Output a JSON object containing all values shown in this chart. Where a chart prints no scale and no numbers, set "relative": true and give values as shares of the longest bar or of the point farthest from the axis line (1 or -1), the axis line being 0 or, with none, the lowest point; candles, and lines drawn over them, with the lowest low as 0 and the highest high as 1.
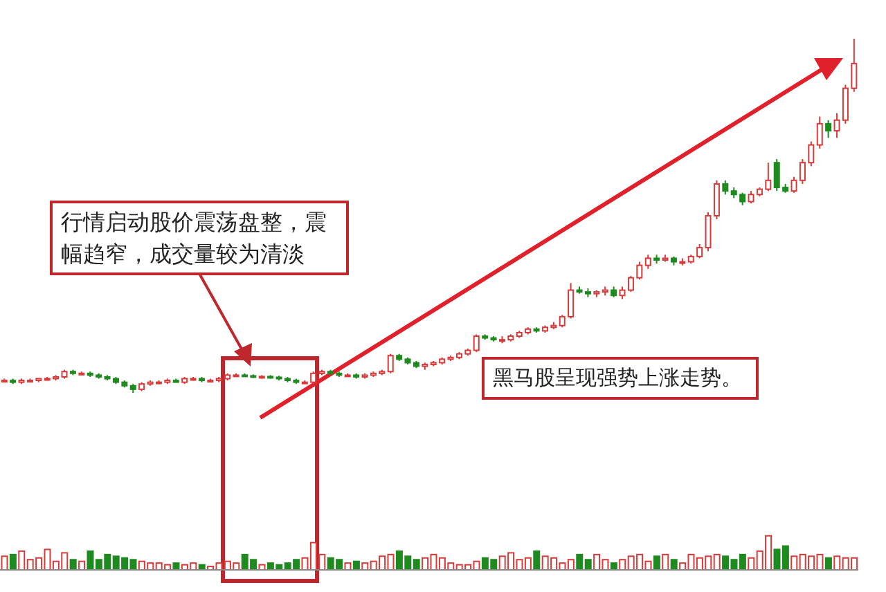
{
  "chart_data": [
    {
      "type": "candlestick",
      "relative": true,
      "tick_labels": false,
      "legend": false,
      "categories": [
        null,
        null,
        null,
        null,
        null,
        null,
        null,
        null,
        null,
        null,
        null,
        null,
        null,
        null,
        null,
        null,
        null,
        null,
        null,
        null,
        null,
        null,
        null,
        null,
        null,
        null,
        null,
        null,
        null,
        null,
        null,
        null,
        null,
        null,
        null,
        null,
        null,
        null,
        null,
        null,
        null,
        null,
        null,
        null,
        null,
        null,
        null,
        null,
        null,
        null,
        null,
        null,
        null,
        null,
        null,
        null,
        null,
        null,
        null,
        null,
        null,
        null,
        null,
        null,
        null,
        null,
        null,
        null,
        null,
        null,
        null,
        null,
        null,
        null,
        null,
        null,
        null,
        null,
        null,
        null,
        null,
        null,
        null,
        null,
        null,
        null,
        null,
        null,
        null,
        null,
        null,
        null,
        null,
        null,
        null,
        null,
        null,
        null,
        null,
        null
      ],
      "ohlc": [
        [
          0.035,
          0.04,
          0.03,
          0.035
        ],
        [
          0.035,
          0.04,
          0.025,
          0.03
        ],
        [
          0.03,
          0.04,
          0.025,
          0.035
        ],
        [
          0.035,
          0.04,
          0.03,
          0.035
        ],
        [
          0.035,
          0.04,
          0.03,
          0.04
        ],
        [
          0.04,
          0.045,
          0.035,
          0.04
        ],
        [
          0.04,
          0.05,
          0.035,
          0.045
        ],
        [
          0.045,
          0.065,
          0.04,
          0.06
        ],
        [
          0.06,
          0.065,
          0.05,
          0.055
        ],
        [
          0.055,
          0.06,
          0.05,
          0.055
        ],
        [
          0.055,
          0.06,
          0.045,
          0.05
        ],
        [
          0.05,
          0.055,
          0.04,
          0.045
        ],
        [
          0.045,
          0.05,
          0.035,
          0.04
        ],
        [
          0.04,
          0.045,
          0.025,
          0.03
        ],
        [
          0.03,
          0.035,
          0.015,
          0.02
        ],
        [
          0.02,
          0.025,
          0,
          0.01
        ],
        [
          0.01,
          0.03,
          0.005,
          0.025
        ],
        [
          0.025,
          0.035,
          0.02,
          0.03
        ],
        [
          0.03,
          0.035,
          0.025,
          0.03
        ],
        [
          0.03,
          0.04,
          0.025,
          0.035
        ],
        [
          0.035,
          0.04,
          0.03,
          0.03
        ],
        [
          0.03,
          0.045,
          0.025,
          0.04
        ],
        [
          0.04,
          0.045,
          0.035,
          0.04
        ],
        [
          0.04,
          0.045,
          0.03,
          0.035
        ],
        [
          0.035,
          0.04,
          0.03,
          0.035
        ],
        [
          0.035,
          0.045,
          0.03,
          0.04
        ],
        [
          0.04,
          0.055,
          0.035,
          0.05
        ],
        [
          0.05,
          0.055,
          0.045,
          0.05
        ],
        [
          0.05,
          0.055,
          0.045,
          0.048
        ],
        [
          0.048,
          0.052,
          0.042,
          0.046
        ],
        [
          0.046,
          0.05,
          0.04,
          0.046
        ],
        [
          0.046,
          0.05,
          0.04,
          0.044
        ],
        [
          0.044,
          0.048,
          0.035,
          0.04
        ],
        [
          0.04,
          0.045,
          0.03,
          0.035
        ],
        [
          0.035,
          0.04,
          0.025,
          0.03
        ],
        [
          0.03,
          0.035,
          0.025,
          0.03
        ],
        [
          0.03,
          0.06,
          0.025,
          0.055
        ],
        [
          0.055,
          0.065,
          0.05,
          0.06
        ],
        [
          0.06,
          0.065,
          0.05,
          0.055
        ],
        [
          0.055,
          0.06,
          0.045,
          0.05
        ],
        [
          0.05,
          0.055,
          0.045,
          0.05
        ],
        [
          0.05,
          0.055,
          0.04,
          0.045
        ],
        [
          0.045,
          0.055,
          0.04,
          0.05
        ],
        [
          0.05,
          0.06,
          0.045,
          0.055
        ],
        [
          0.055,
          0.065,
          0.05,
          0.06
        ],
        [
          0.06,
          0.11,
          0.055,
          0.105
        ],
        [
          0.105,
          0.11,
          0.09,
          0.095
        ],
        [
          0.095,
          0.1,
          0.08,
          0.085
        ],
        [
          0.085,
          0.09,
          0.07,
          0.075
        ],
        [
          0.075,
          0.085,
          0.065,
          0.08
        ],
        [
          0.08,
          0.09,
          0.075,
          0.085
        ],
        [
          0.085,
          0.1,
          0.08,
          0.095
        ],
        [
          0.095,
          0.105,
          0.09,
          0.1
        ],
        [
          0.1,
          0.115,
          0.095,
          0.11
        ],
        [
          0.11,
          0.125,
          0.105,
          0.12
        ],
        [
          0.12,
          0.165,
          0.115,
          0.16
        ],
        [
          0.16,
          0.165,
          0.15,
          0.155
        ],
        [
          0.155,
          0.16,
          0.145,
          0.15
        ],
        [
          0.15,
          0.16,
          0.14,
          0.15
        ],
        [
          0.15,
          0.165,
          0.145,
          0.16
        ],
        [
          0.16,
          0.175,
          0.155,
          0.17
        ],
        [
          0.17,
          0.185,
          0.165,
          0.18
        ],
        [
          0.18,
          0.185,
          0.17,
          0.175
        ],
        [
          0.175,
          0.19,
          0.17,
          0.185
        ],
        [
          0.185,
          0.2,
          0.18,
          0.19
        ],
        [
          0.19,
          0.22,
          0.185,
          0.215
        ],
        [
          0.215,
          0.31,
          0.21,
          0.29
        ],
        [
          0.29,
          0.3,
          0.28,
          0.285
        ],
        [
          0.285,
          0.295,
          0.27,
          0.28
        ],
        [
          0.28,
          0.29,
          0.27,
          0.285
        ],
        [
          0.285,
          0.3,
          0.275,
          0.29
        ],
        [
          0.29,
          0.3,
          0.27,
          0.275
        ],
        [
          0.275,
          0.3,
          0.265,
          0.29
        ],
        [
          0.29,
          0.33,
          0.285,
          0.325
        ],
        [
          0.325,
          0.37,
          0.32,
          0.36
        ],
        [
          0.36,
          0.39,
          0.35,
          0.38
        ],
        [
          0.38,
          0.39,
          0.365,
          0.375
        ],
        [
          0.375,
          0.39,
          0.37,
          0.38
        ],
        [
          0.38,
          0.385,
          0.36,
          0.37
        ],
        [
          0.37,
          0.38,
          0.36,
          0.37
        ],
        [
          0.37,
          0.39,
          0.365,
          0.385
        ],
        [
          0.385,
          0.42,
          0.38,
          0.41
        ],
        [
          0.41,
          0.51,
          0.4,
          0.5
        ],
        [
          0.5,
          0.6,
          0.49,
          0.59
        ],
        [
          0.59,
          0.6,
          0.56,
          0.57
        ],
        [
          0.57,
          0.58,
          0.55,
          0.56
        ],
        [
          0.56,
          0.565,
          0.53,
          0.54
        ],
        [
          0.54,
          0.57,
          0.535,
          0.56
        ],
        [
          0.56,
          0.58,
          0.555,
          0.575
        ],
        [
          0.575,
          0.65,
          0.57,
          0.6
        ],
        [
          0.65,
          0.66,
          0.57,
          0.58
        ],
        [
          0.58,
          0.59,
          0.565,
          0.57
        ],
        [
          0.57,
          0.61,
          0.565,
          0.6
        ],
        [
          0.6,
          0.66,
          0.59,
          0.65
        ],
        [
          0.65,
          0.71,
          0.64,
          0.7
        ],
        [
          0.7,
          0.78,
          0.69,
          0.76
        ],
        [
          0.76,
          0.77,
          0.72,
          0.74
        ],
        [
          0.74,
          0.79,
          0.72,
          0.77
        ],
        [
          0.77,
          0.87,
          0.76,
          0.86
        ],
        [
          0.86,
          1,
          0.85,
          0.93
        ]
      ],
      "colors": [
        "#d83a3a",
        "#1f8a1f",
        "#d83a3a",
        "#d83a3a",
        "#d83a3a",
        "#d83a3a",
        "#d83a3a",
        "#d83a3a",
        "#1f8a1f",
        "#d83a3a",
        "#1f8a1f",
        "#1f8a1f",
        "#1f8a1f",
        "#1f8a1f",
        "#1f8a1f",
        "#1f8a1f",
        "#d83a3a",
        "#d83a3a",
        "#d83a3a",
        "#d83a3a",
        "#1f8a1f",
        "#d83a3a",
        "#d83a3a",
        "#1f8a1f",
        "#d83a3a",
        "#d83a3a",
        "#d83a3a",
        "#d83a3a",
        "#1f8a1f",
        "#1f8a1f",
        "#d83a3a",
        "#1f8a1f",
        "#1f8a1f",
        "#1f8a1f",
        "#1f8a1f",
        "#d83a3a",
        "#d83a3a",
        "#d83a3a",
        "#1f8a1f",
        "#1f8a1f",
        "#d83a3a",
        "#1f8a1f",
        "#d83a3a",
        "#d83a3a",
        "#d83a3a",
        "#d83a3a",
        "#1f8a1f",
        "#1f8a1f",
        "#1f8a1f",
        "#d83a3a",
        "#d83a3a",
        "#d83a3a",
        "#d83a3a",
        "#d83a3a",
        "#d83a3a",
        "#d83a3a",
        "#1f8a1f",
        "#1f8a1f",
        "#d83a3a",
        "#d83a3a",
        "#d83a3a",
        "#d83a3a",
        "#1f8a1f",
        "#d83a3a",
        "#d83a3a",
        "#d83a3a",
        "#d83a3a",
        "#1f8a1f",
        "#1f8a1f",
        "#d83a3a",
        "#d83a3a",
        "#1f8a1f",
        "#d83a3a",
        "#d83a3a",
        "#d83a3a",
        "#d83a3a",
        "#1f8a1f",
        "#d83a3a",
        "#1f8a1f",
        "#d83a3a",
        "#d83a3a",
        "#d83a3a",
        "#d83a3a",
        "#d83a3a",
        "#1f8a1f",
        "#1f8a1f",
        "#1f8a1f",
        "#d83a3a",
        "#d83a3a",
        "#d83a3a",
        "#1f8a1f",
        "#1f8a1f",
        "#d83a3a",
        "#d83a3a",
        "#d83a3a",
        "#d83a3a",
        "#1f8a1f",
        "#d83a3a",
        "#d83a3a",
        "#d83a3a"
      ],
      "annotations": [
        "行情启动股价震荡盘整，震幅趋窄，成交量较为清淡",
        "黑马股呈现强势上涨走势。"
      ]
    },
    {
      "type": "bar",
      "relative": true,
      "tick_labels": false,
      "legend": false,
      "categories": [
        null,
        null,
        null,
        null,
        null,
        null,
        null,
        null,
        null,
        null,
        null,
        null,
        null,
        null,
        null,
        null,
        null,
        null,
        null,
        null,
        null,
        null,
        null,
        null,
        null,
        null,
        null,
        null,
        null,
        null,
        null,
        null,
        null,
        null,
        null,
        null,
        null,
        null,
        null,
        null,
        null,
        null,
        null,
        null,
        null,
        null,
        null,
        null,
        null,
        null,
        null,
        null,
        null,
        null,
        null,
        null,
        null,
        null,
        null,
        null,
        null,
        null,
        null,
        null,
        null,
        null,
        null,
        null,
        null,
        null,
        null,
        null,
        null,
        null,
        null,
        null,
        null,
        null,
        null,
        null,
        null,
        null,
        null,
        null,
        null,
        null,
        null,
        null,
        null,
        null,
        null,
        null,
        null,
        null,
        null,
        null,
        null,
        null,
        null,
        null
      ],
      "values": [
        0.4,
        0.45,
        0.55,
        0.3,
        0.35,
        0.6,
        0.25,
        0.5,
        0.3,
        0.25,
        0.55,
        0.3,
        0.45,
        0.4,
        0.35,
        0.3,
        0.25,
        0.2,
        0.2,
        0.15,
        0.2,
        0.15,
        0.2,
        0.15,
        0.1,
        0.2,
        0.25,
        0.2,
        0.45,
        0.3,
        0.15,
        0.2,
        0.15,
        0.2,
        0.3,
        0.35,
        0.8,
        0.45,
        0.35,
        0.3,
        0.2,
        0.25,
        0.2,
        0.25,
        0.4,
        0.45,
        0.55,
        0.4,
        0.3,
        0.35,
        0.45,
        0.35,
        0.2,
        0.15,
        0.15,
        0.25,
        0.35,
        0.3,
        0.4,
        0.5,
        0.3,
        0.35,
        0.55,
        0.4,
        0.35,
        0.2,
        0.3,
        0.45,
        0.3,
        0.45,
        0.3,
        0.2,
        0.3,
        0.4,
        0.45,
        0.25,
        0.4,
        0.45,
        0.3,
        0.2,
        0.45,
        0.35,
        0.4,
        0.45,
        0.4,
        0.3,
        0.45,
        0.35,
        0.55,
        1,
        0.6,
        0.7,
        0.4,
        0.45,
        0.4,
        0.45,
        0.35,
        0.4,
        0.35,
        0.35
      ],
      "colors": [
        "#d83a3a",
        "#1f8a1f",
        "#d83a3a",
        "#d83a3a",
        "#d83a3a",
        "#d83a3a",
        "#d83a3a",
        "#d83a3a",
        "#1f8a1f",
        "#d83a3a",
        "#1f8a1f",
        "#1f8a1f",
        "#1f8a1f",
        "#1f8a1f",
        "#1f8a1f",
        "#1f8a1f",
        "#d83a3a",
        "#d83a3a",
        "#d83a3a",
        "#d83a3a",
        "#1f8a1f",
        "#d83a3a",
        "#d83a3a",
        "#1f8a1f",
        "#d83a3a",
        "#d83a3a",
        "#d83a3a",
        "#d83a3a",
        "#1f8a1f",
        "#1f8a1f",
        "#d83a3a",
        "#1f8a1f",
        "#1f8a1f",
        "#1f8a1f",
        "#1f8a1f",
        "#d83a3a",
        "#d83a3a",
        "#d83a3a",
        "#1f8a1f",
        "#1f8a1f",
        "#d83a3a",
        "#1f8a1f",
        "#d83a3a",
        "#d83a3a",
        "#d83a3a",
        "#d83a3a",
        "#1f8a1f",
        "#1f8a1f",
        "#1f8a1f",
        "#d83a3a",
        "#d83a3a",
        "#d83a3a",
        "#d83a3a",
        "#d83a3a",
        "#d83a3a",
        "#d83a3a",
        "#1f8a1f",
        "#1f8a1f",
        "#d83a3a",
        "#d83a3a",
        "#d83a3a",
        "#d83a3a",
        "#1f8a1f",
        "#d83a3a",
        "#d83a3a",
        "#d83a3a",
        "#d83a3a",
        "#1f8a1f",
        "#1f8a1f",
        "#d83a3a",
        "#d83a3a",
        "#1f8a1f",
        "#d83a3a",
        "#d83a3a",
        "#d83a3a",
        "#d83a3a",
        "#1f8a1f",
        "#d83a3a",
        "#1f8a1f",
        "#d83a3a",
        "#d83a3a",
        "#d83a3a",
        "#d83a3a",
        "#d83a3a",
        "#1f8a1f",
        "#1f8a1f",
        "#1f8a1f",
        "#d83a3a",
        "#d83a3a",
        "#d83a3a",
        "#1f8a1f",
        "#1f8a1f",
        "#d83a3a",
        "#d83a3a",
        "#d83a3a",
        "#d83a3a",
        "#1f8a1f",
        "#d83a3a",
        "#d83a3a",
        "#d83a3a"
      ],
      "grid": false
    }
  ]
}
